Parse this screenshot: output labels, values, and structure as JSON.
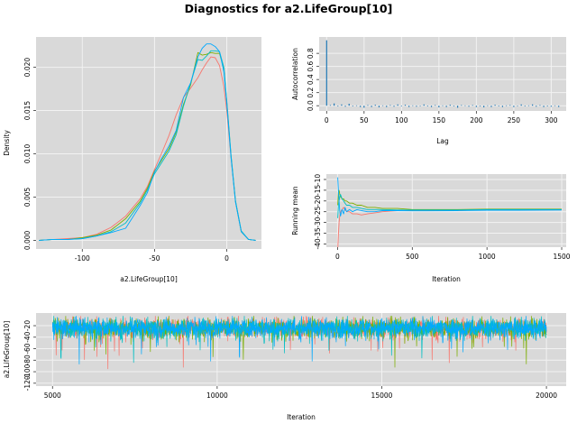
{
  "figure": {
    "title": "Diagnostics for a2.LifeGroup[10]"
  },
  "colors": {
    "chain1": "#f8766d",
    "chain2": "#7cae00",
    "chain3": "#00bfc4",
    "chain4": "#00a9ff",
    "panel_bg": "#d9d9d9",
    "grid": "#f2f2f2",
    "acf": "#1f77b4"
  },
  "chart_data": [
    {
      "id": "density",
      "type": "line",
      "title": "",
      "xlabel": "a2.LifeGroup[10]",
      "ylabel": "Density",
      "xlim": [
        -132,
        24
      ],
      "ylim": [
        -0.001,
        0.0235
      ],
      "xticks": [
        -100,
        -50,
        0
      ],
      "xtick_labels": [
        "-100",
        "-50",
        "0"
      ],
      "yticks": [
        0,
        0.005,
        0.01,
        0.015,
        0.02
      ],
      "ytick_labels": [
        "0.000",
        "0.005",
        "0.010",
        "0.015",
        "0.020"
      ],
      "grid": true,
      "x": [
        -130,
        -120,
        -110,
        -100,
        -90,
        -80,
        -70,
        -60,
        -55,
        -50,
        -45,
        -40,
        -35,
        -30,
        -25,
        -20,
        -17,
        -14,
        -11,
        -8,
        -5,
        -2,
        0,
        3,
        6,
        10,
        15,
        20
      ],
      "series": [
        {
          "color": "chain1",
          "values": [
            0,
            0.0001,
            0.0002,
            0.0003,
            0.0007,
            0.0015,
            0.0028,
            0.0048,
            0.0062,
            0.0082,
            0.0101,
            0.0121,
            0.0145,
            0.0165,
            0.0176,
            0.0188,
            0.0197,
            0.0205,
            0.0212,
            0.0211,
            0.0202,
            0.0178,
            0.015,
            0.0095,
            0.0045,
            0.001,
            0.0001,
            0
          ]
        },
        {
          "color": "chain2",
          "values": [
            0,
            0.0001,
            0.0001,
            0.0003,
            0.0006,
            0.0012,
            0.0025,
            0.0045,
            0.006,
            0.008,
            0.0093,
            0.0106,
            0.0125,
            0.0157,
            0.018,
            0.0217,
            0.0214,
            0.0215,
            0.0217,
            0.0216,
            0.0216,
            0.0198,
            0.016,
            0.0097,
            0.0045,
            0.001,
            0.0001,
            0
          ]
        },
        {
          "color": "chain3",
          "values": [
            0,
            0.0001,
            0.0001,
            0.0002,
            0.0005,
            0.001,
            0.002,
            0.0043,
            0.0058,
            0.0077,
            0.009,
            0.0103,
            0.0122,
            0.0155,
            0.0182,
            0.0209,
            0.0208,
            0.0213,
            0.0219,
            0.0219,
            0.0218,
            0.02,
            0.0162,
            0.0098,
            0.0046,
            0.0011,
            0.0001,
            0
          ]
        },
        {
          "color": "chain4",
          "values": [
            0,
            0.0001,
            0.0001,
            0.0002,
            0.0005,
            0.0009,
            0.0014,
            0.004,
            0.0055,
            0.0079,
            0.0095,
            0.0109,
            0.0127,
            0.0165,
            0.0182,
            0.0212,
            0.0222,
            0.0227,
            0.0227,
            0.0224,
            0.0218,
            0.0195,
            0.0158,
            0.0095,
            0.0044,
            0.001,
            0.0001,
            0
          ]
        }
      ]
    },
    {
      "id": "acf",
      "type": "bar",
      "title": "",
      "xlabel": "Lag",
      "ylabel": "Autocorrelation",
      "xlim": [
        -10,
        320
      ],
      "ylim": [
        -0.08,
        1.05
      ],
      "xticks": [
        0,
        50,
        100,
        150,
        200,
        250,
        300
      ],
      "xtick_labels": [
        "0",
        "50",
        "100",
        "150",
        "200",
        "250",
        "300"
      ],
      "yticks": [
        0,
        0.2,
        0.4,
        0.6,
        0.8
      ],
      "ytick_labels": [
        "0.0",
        "0.2",
        "0.4",
        "0.6",
        "0.8"
      ],
      "grid": true,
      "x": [
        0,
        5,
        10,
        15,
        20,
        25,
        30,
        35,
        40,
        45,
        50,
        55,
        60,
        65,
        70,
        75,
        80,
        85,
        90,
        95,
        100,
        105,
        110,
        115,
        120,
        125,
        130,
        135,
        140,
        145,
        150,
        155,
        160,
        165,
        170,
        175,
        180,
        185,
        190,
        195,
        200,
        205,
        210,
        215,
        220,
        225,
        230,
        235,
        240,
        245,
        250,
        255,
        260,
        265,
        270,
        275,
        280,
        285,
        290,
        295,
        300,
        305,
        310
      ],
      "values": [
        1.0,
        0.01,
        0.035,
        -0.01,
        0.02,
        -0.015,
        0.03,
        -0.01,
        0.005,
        -0.02,
        -0.03,
        0.01,
        -0.02,
        0.015,
        -0.025,
        0.005,
        -0.02,
        0.01,
        -0.015,
        0.02,
        -0.01,
        0.015,
        -0.02,
        0.005,
        -0.015,
        -0.005,
        0.02,
        -0.01,
        -0.02,
        0.01,
        -0.025,
        0.005,
        -0.02,
        0.015,
        -0.01,
        -0.03,
        0.01,
        0.005,
        -0.015,
        0.01,
        -0.02,
        -0.01,
        -0.025,
        0.005,
        -0.02,
        0.015,
        -0.01,
        -0.02,
        0.005,
        0.01,
        -0.02,
        -0.005,
        0.02,
        -0.01,
        0.005,
        0.02,
        -0.015,
        0.01,
        -0.02,
        -0.01,
        -0.015,
        0.005,
        -0.02
      ]
    },
    {
      "id": "running_mean",
      "type": "line",
      "title": "",
      "xlabel": "Iteration",
      "ylabel": "Running mean",
      "xlim": [
        -75,
        1530
      ],
      "ylim": [
        -41.5,
        -7.5
      ],
      "xticks": [
        0,
        500,
        1000,
        1500
      ],
      "xtick_labels": [
        "0",
        "500",
        "1000",
        "1500"
      ],
      "yticks": [
        -40,
        -35,
        -30,
        -25,
        -20,
        -15,
        -10
      ],
      "ytick_labels": [
        "-40",
        "-35",
        "-30",
        "-25",
        "-20",
        "-15",
        "-10"
      ],
      "grid": true,
      "x": [
        1,
        5,
        10,
        15,
        20,
        30,
        40,
        50,
        60,
        80,
        100,
        130,
        160,
        200,
        250,
        300,
        400,
        500,
        600,
        800,
        1000,
        1200,
        1500
      ],
      "series": [
        {
          "color": "chain1",
          "values": [
            -43,
            -36,
            -30,
            -27,
            -25,
            -24,
            -23,
            -24,
            -25,
            -25,
            -26,
            -26,
            -26.5,
            -26,
            -25.5,
            -25,
            -24.5,
            -24.5,
            -24.5,
            -24.5,
            -24,
            -24,
            -24
          ]
        },
        {
          "color": "chain2",
          "values": [
            -22,
            -16,
            -15,
            -17,
            -18,
            -19,
            -19,
            -20,
            -20,
            -21,
            -21,
            -22,
            -22,
            -23,
            -23,
            -23.5,
            -23.5,
            -24,
            -24,
            -24,
            -23.8,
            -23.8,
            -23.8
          ]
        },
        {
          "color": "chain3",
          "values": [
            -28,
            -22,
            -20,
            -18,
            -17,
            -19,
            -20,
            -21,
            -22,
            -22,
            -23,
            -23,
            -23.5,
            -24,
            -24,
            -24,
            -24.2,
            -24.2,
            -24.2,
            -24.2,
            -24,
            -24,
            -24
          ]
        },
        {
          "color": "chain4",
          "values": [
            -9,
            -15,
            -20,
            -25,
            -27,
            -24,
            -26,
            -23,
            -25,
            -24,
            -25,
            -24,
            -24.5,
            -25,
            -25,
            -24.5,
            -24.5,
            -24.6,
            -24.6,
            -24.5,
            -24.3,
            -24.3,
            -24.2
          ]
        }
      ]
    },
    {
      "id": "trace",
      "type": "line",
      "title": "",
      "xlabel": "Iteration",
      "ylabel": "a2.LifeGroup[10]",
      "xlim": [
        4500,
        20600
      ],
      "ylim": [
        -125,
        2
      ],
      "xticks": [
        5000,
        10000,
        15000,
        20000
      ],
      "xtick_labels": [
        "5000",
        "10000",
        "15000",
        "20000"
      ],
      "yticks": [
        -120,
        -100,
        -80,
        -60,
        -40,
        -20
      ],
      "ytick_labels": [
        "-120",
        "-100",
        "-80",
        "-60",
        "-40",
        "-20"
      ],
      "grid": true,
      "x_start": 5000,
      "x_end": 20000,
      "series": [
        {
          "color": "chain1",
          "mean": -24,
          "sd": 13.5
        },
        {
          "color": "chain2",
          "mean": -24,
          "sd": 14
        },
        {
          "color": "chain3",
          "mean": -23.5,
          "sd": 13.5
        },
        {
          "color": "chain4",
          "mean": -23.5,
          "sd": 13
        }
      ]
    }
  ]
}
